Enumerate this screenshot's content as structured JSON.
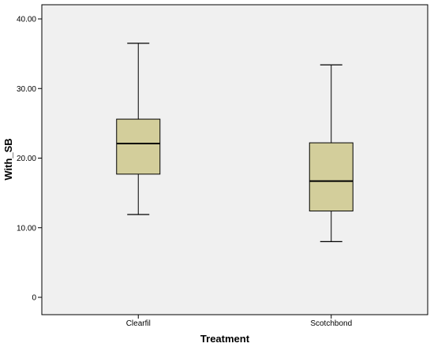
{
  "chart_data": {
    "type": "boxplot",
    "xlabel": "Treatment",
    "ylabel": "With_SB",
    "ylim": [
      0,
      40
    ],
    "yticks": [
      {
        "value": 0,
        "label": "0"
      },
      {
        "value": 10,
        "label": "10.00"
      },
      {
        "value": 20,
        "label": "20.00"
      },
      {
        "value": 30,
        "label": "30.00"
      },
      {
        "value": 40,
        "label": "40.00"
      }
    ],
    "categories": [
      "Clearfil",
      "Scotchbond"
    ],
    "boxes": [
      {
        "name": "Clearfil",
        "min": 11.9,
        "q1": 17.7,
        "median": 22.1,
        "q3": 25.6,
        "max": 36.5
      },
      {
        "name": "Scotchbond",
        "min": 8.0,
        "q1": 12.4,
        "median": 16.7,
        "q3": 22.2,
        "max": 33.4
      }
    ],
    "grid": false,
    "colors": {
      "plot_bg": "#f0f0f0",
      "box_fill": "#d3ce9b",
      "stroke": "#000000"
    }
  }
}
